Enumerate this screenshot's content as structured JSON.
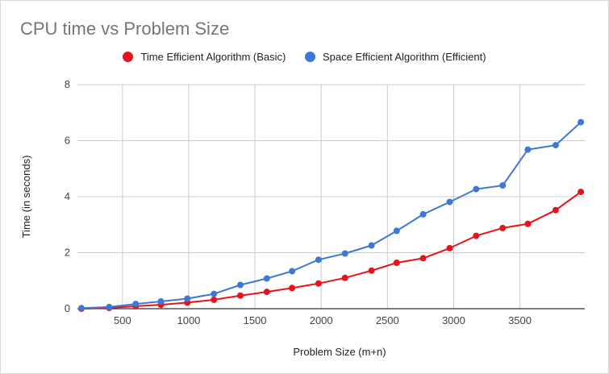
{
  "chart_data": {
    "type": "line",
    "title": "CPU time vs Problem Size",
    "xlabel": "Problem Size (m+n)",
    "ylabel": "Time (in seconds)",
    "xlim": [
      160,
      3990
    ],
    "ylim": [
      0,
      8
    ],
    "x_ticks": [
      500,
      1000,
      1500,
      2000,
      2500,
      3000,
      3500
    ],
    "y_ticks": [
      0,
      2,
      4,
      6,
      8
    ],
    "grid": true,
    "legend_position": "top",
    "x": [
      190,
      400,
      600,
      790,
      990,
      1190,
      1390,
      1590,
      1780,
      1980,
      2180,
      2380,
      2570,
      2770,
      2970,
      3170,
      3370,
      3560,
      3770,
      3960
    ],
    "series": [
      {
        "name": "Time Efficient Algorithm (Basic)",
        "color": "#e8121a",
        "values": [
          0.0,
          0.03,
          0.09,
          0.14,
          0.22,
          0.32,
          0.47,
          0.6,
          0.74,
          0.9,
          1.1,
          1.36,
          1.64,
          1.8,
          2.16,
          2.6,
          2.88,
          3.03,
          3.52,
          4.17
        ]
      },
      {
        "name": "Space Efficient Algorithm (Efficient)",
        "color": "#3c78d8",
        "values": [
          0.02,
          0.06,
          0.17,
          0.26,
          0.36,
          0.53,
          0.85,
          1.08,
          1.34,
          1.75,
          1.97,
          2.26,
          2.78,
          3.37,
          3.81,
          4.27,
          4.4,
          5.68,
          5.84,
          6.66
        ]
      }
    ]
  }
}
